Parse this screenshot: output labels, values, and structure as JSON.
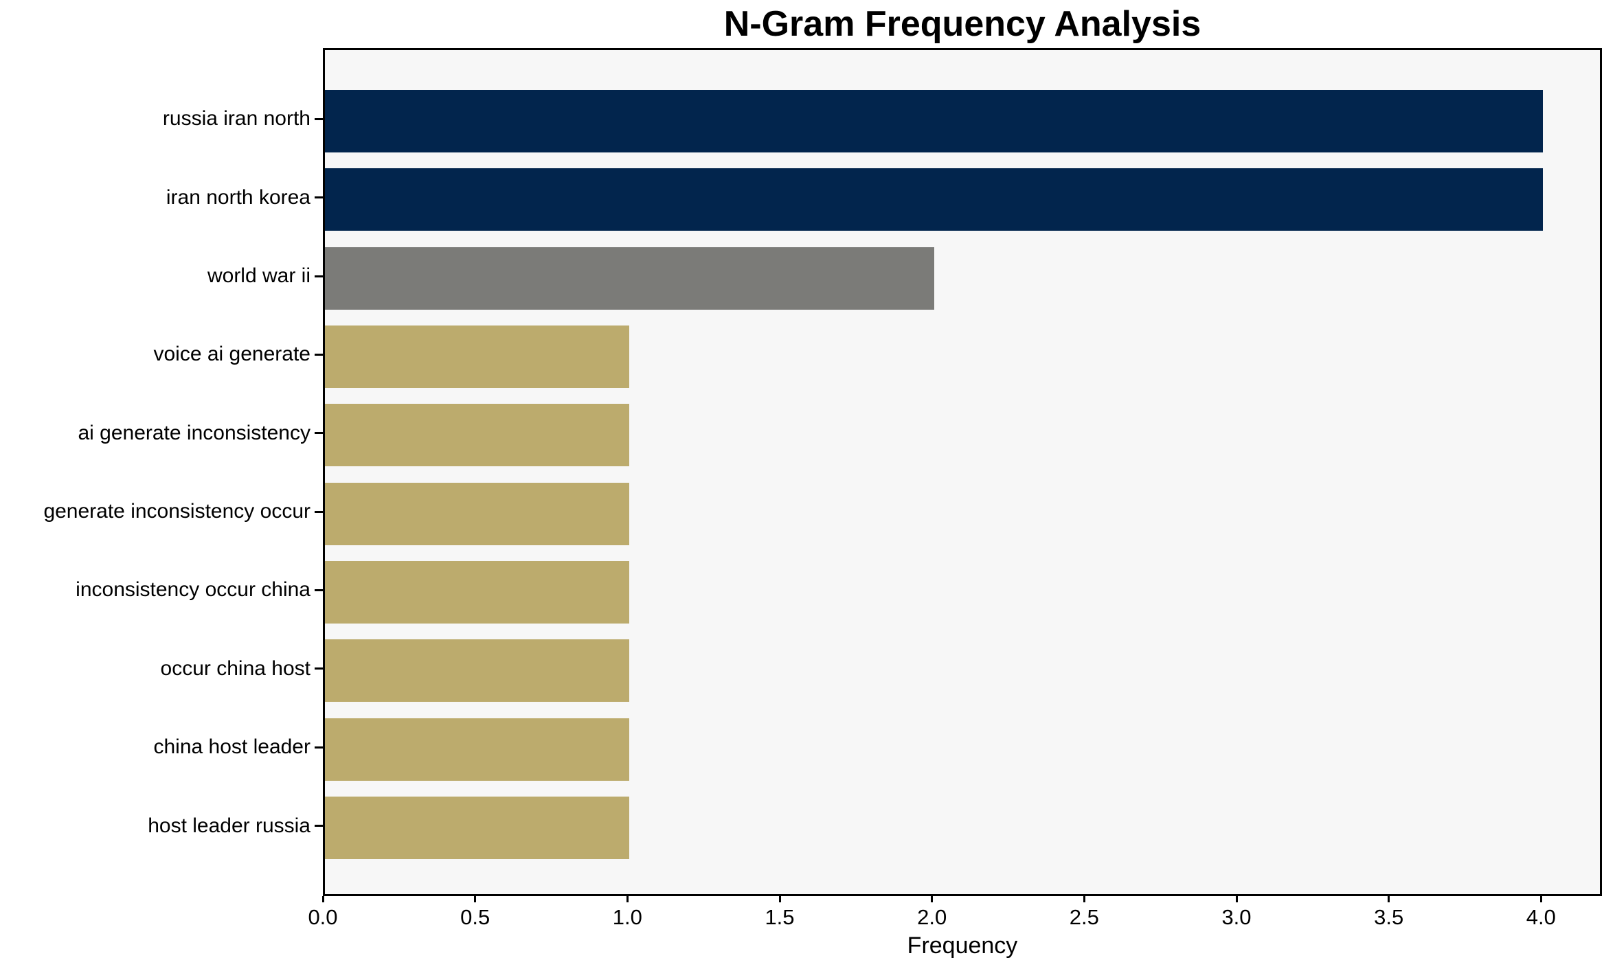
{
  "chart_data": {
    "type": "bar",
    "orientation": "horizontal",
    "title": "N-Gram Frequency Analysis",
    "xlabel": "Frequency",
    "ylabel": "",
    "categories": [
      "russia iran north",
      "iran north korea",
      "world war ii",
      "voice ai generate",
      "ai generate inconsistency",
      "generate inconsistency occur",
      "inconsistency occur china",
      "occur china host",
      "china host leader",
      "host leader russia"
    ],
    "values": [
      4,
      4,
      2,
      1,
      1,
      1,
      1,
      1,
      1,
      1
    ],
    "bar_colors": [
      "#02254d",
      "#02254d",
      "#7b7b78",
      "#bcab6d",
      "#bcab6d",
      "#bcab6d",
      "#bcab6d",
      "#bcab6d",
      "#bcab6d",
      "#bcab6d"
    ],
    "x_ticks": [
      0.0,
      0.5,
      1.0,
      1.5,
      2.0,
      2.5,
      3.0,
      3.5,
      4.0
    ],
    "x_tick_labels": [
      "0.0",
      "0.5",
      "1.0",
      "1.5",
      "2.0",
      "2.5",
      "3.0",
      "3.5",
      "4.0"
    ],
    "xlim": [
      0,
      4.2
    ],
    "grid": false,
    "legend": null,
    "plot_bg_color": "#f7f7f7",
    "figure_bg_color": "#ffffff"
  }
}
